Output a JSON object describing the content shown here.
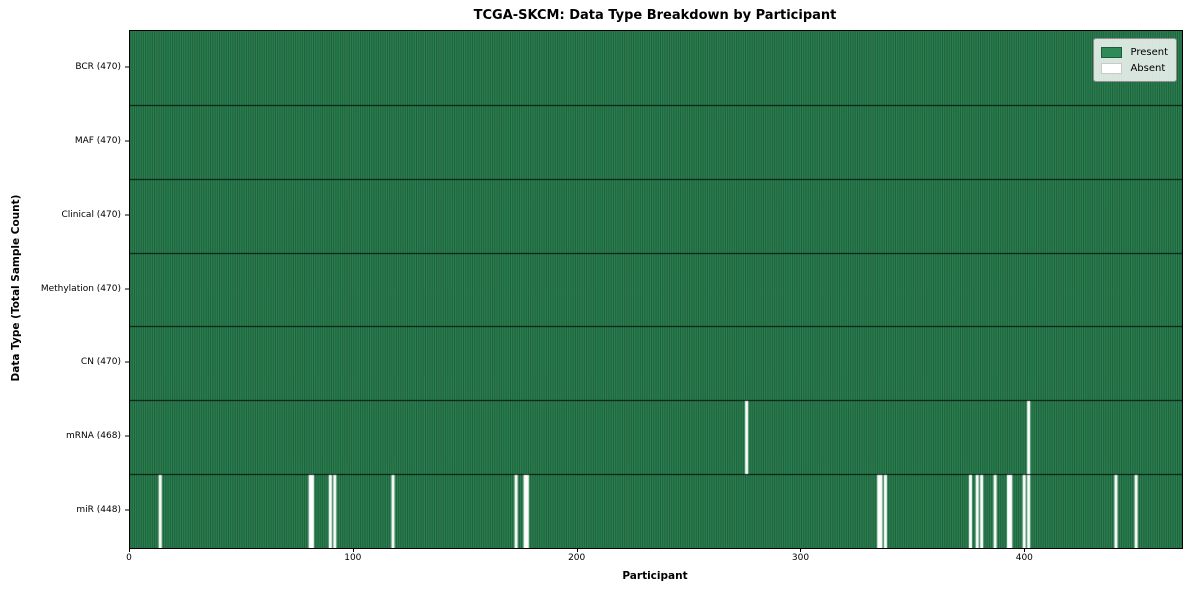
{
  "chart_data": {
    "type": "heatmap",
    "title": "TCGA-SKCM: Data Type Breakdown by Participant",
    "xlabel": "Participant",
    "ylabel": "Data Type (Total Sample Count)",
    "n_participants": 470,
    "xlim": [
      0,
      470
    ],
    "x_ticks": [
      0,
      100,
      200,
      300,
      400
    ],
    "grid": false,
    "rows": [
      {
        "label": "BCR (470)",
        "name": "BCR",
        "present_count": 470,
        "absent_participants": []
      },
      {
        "label": "MAF (470)",
        "name": "MAF",
        "present_count": 470,
        "absent_participants": []
      },
      {
        "label": "Clinical (470)",
        "name": "Clinical",
        "present_count": 470,
        "absent_participants": []
      },
      {
        "label": "Methylation (470)",
        "name": "Methylation",
        "present_count": 470,
        "absent_participants": []
      },
      {
        "label": "CN (470)",
        "name": "CN",
        "present_count": 470,
        "absent_participants": []
      },
      {
        "label": "mRNA (468)",
        "name": "mRNA",
        "present_count": 468,
        "absent_participants": [
          275,
          401
        ]
      },
      {
        "label": "miR (448)",
        "name": "miR",
        "present_count": 448,
        "absent_participants": [
          13,
          80,
          81,
          89,
          91,
          117,
          172,
          176,
          177,
          334,
          335,
          337,
          375,
          378,
          380,
          386,
          392,
          393,
          399,
          401,
          440,
          449
        ]
      }
    ],
    "colors": {
      "present": "#2e8b57",
      "absent": "#ffffff",
      "cell_edge": "rgba(0,0,0,0.5)",
      "row_separator": "rgba(0,0,0,0.85)",
      "axis": "#000000"
    },
    "legend": {
      "position": "upper right",
      "items": [
        {
          "label": "Present",
          "color": "#2e8b57"
        },
        {
          "label": "Absent",
          "color": "#ffffff"
        }
      ]
    }
  }
}
